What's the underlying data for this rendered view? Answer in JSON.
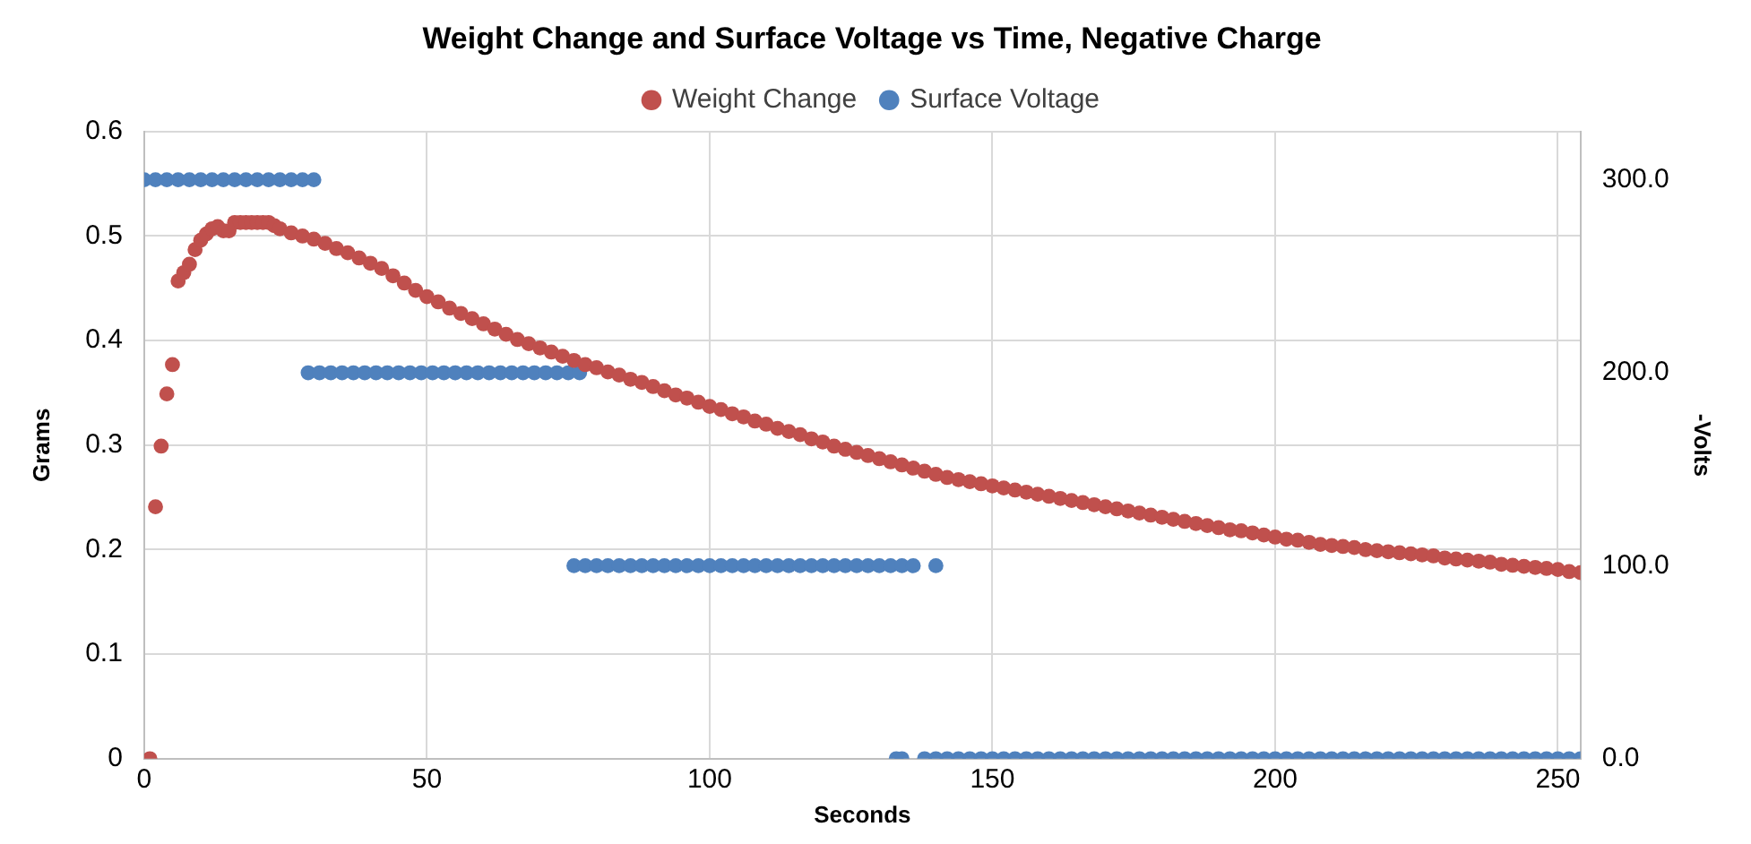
{
  "chart_data": {
    "type": "scatter",
    "title": "Weight Change and Surface Voltage vs Time, Negative Charge",
    "xlabel": "Seconds",
    "ylabel": "Grams",
    "y2label": "-Volts",
    "xlim": [
      0,
      254
    ],
    "xticks": [
      0,
      50,
      100,
      150,
      200,
      250
    ],
    "ylim": [
      0,
      0.6
    ],
    "yticks": [
      0,
      0.1,
      0.2,
      0.3,
      0.4,
      0.5,
      0.6
    ],
    "y2lim": [
      0,
      325
    ],
    "y2ticks": [
      {
        "value": 0,
        "label": "0.0"
      },
      {
        "value": 100,
        "label": "100.0"
      },
      {
        "value": 200,
        "label": "200.0"
      },
      {
        "value": 300,
        "label": "300.0"
      }
    ],
    "grid": true,
    "legend": "top",
    "marker": "circle",
    "series": [
      {
        "name": "Weight Change",
        "color": "#c0504d",
        "x": [
          1,
          2,
          3,
          4,
          5,
          6,
          7,
          8,
          9,
          10,
          11,
          12,
          13,
          14,
          15,
          16,
          17,
          18,
          19,
          20,
          21,
          22,
          23,
          24,
          26,
          28,
          30,
          32,
          34,
          36,
          38,
          40,
          42,
          44,
          46,
          48,
          50,
          52,
          54,
          56,
          58,
          60,
          62,
          64,
          66,
          68,
          70,
          72,
          74,
          76,
          78,
          80,
          82,
          84,
          86,
          88,
          90,
          92,
          94,
          96,
          98,
          100,
          102,
          104,
          106,
          108,
          110,
          112,
          114,
          116,
          118,
          120,
          122,
          124,
          126,
          128,
          130,
          132,
          134,
          136,
          138,
          140,
          142,
          144,
          146,
          148,
          150,
          152,
          154,
          156,
          158,
          160,
          162,
          164,
          166,
          168,
          170,
          172,
          174,
          176,
          178,
          180,
          182,
          184,
          186,
          188,
          190,
          192,
          194,
          196,
          198,
          200,
          202,
          204,
          206,
          208,
          210,
          212,
          214,
          216,
          218,
          220,
          222,
          224,
          226,
          228,
          230,
          232,
          234,
          236,
          238,
          240,
          242,
          244,
          246,
          248,
          250,
          252,
          254
        ],
        "values": [
          0,
          0.241,
          0.299,
          0.349,
          0.377,
          0.457,
          0.465,
          0.473,
          0.487,
          0.496,
          0.502,
          0.507,
          0.509,
          0.505,
          0.505,
          0.513,
          0.513,
          0.513,
          0.513,
          0.513,
          0.513,
          0.513,
          0.51,
          0.507,
          0.503,
          0.5,
          0.497,
          0.493,
          0.488,
          0.484,
          0.479,
          0.474,
          0.469,
          0.462,
          0.455,
          0.448,
          0.442,
          0.437,
          0.431,
          0.426,
          0.421,
          0.416,
          0.411,
          0.406,
          0.401,
          0.397,
          0.393,
          0.389,
          0.385,
          0.381,
          0.377,
          0.374,
          0.37,
          0.367,
          0.363,
          0.36,
          0.356,
          0.352,
          0.348,
          0.345,
          0.341,
          0.337,
          0.334,
          0.33,
          0.327,
          0.323,
          0.32,
          0.316,
          0.313,
          0.31,
          0.306,
          0.303,
          0.299,
          0.296,
          0.293,
          0.29,
          0.287,
          0.284,
          0.281,
          0.278,
          0.275,
          0.272,
          0.269,
          0.267,
          0.265,
          0.263,
          0.261,
          0.259,
          0.257,
          0.255,
          0.253,
          0.251,
          0.249,
          0.247,
          0.245,
          0.243,
          0.241,
          0.239,
          0.237,
          0.235,
          0.233,
          0.231,
          0.229,
          0.227,
          0.225,
          0.223,
          0.221,
          0.219,
          0.218,
          0.216,
          0.214,
          0.212,
          0.21,
          0.209,
          0.207,
          0.205,
          0.204,
          0.203,
          0.202,
          0.2,
          0.199,
          0.198,
          0.197,
          0.196,
          0.195,
          0.194,
          0.192,
          0.191,
          0.19,
          0.189,
          0.188,
          0.186,
          0.185,
          0.184,
          0.183,
          0.182,
          0.181,
          0.179,
          0.178
        ]
      },
      {
        "name": "Surface Voltage",
        "color": "#4f81bd",
        "axis": "y2",
        "x": [
          0,
          2,
          4,
          6,
          8,
          10,
          12,
          14,
          16,
          18,
          20,
          22,
          24,
          26,
          28,
          30,
          29,
          31,
          33,
          35,
          37,
          39,
          41,
          43,
          45,
          47,
          49,
          51,
          53,
          55,
          57,
          59,
          61,
          63,
          65,
          67,
          69,
          71,
          73,
          75,
          77,
          76,
          78,
          80,
          82,
          84,
          86,
          88,
          90,
          92,
          94,
          96,
          98,
          100,
          102,
          104,
          106,
          108,
          110,
          112,
          114,
          116,
          118,
          120,
          122,
          124,
          126,
          128,
          130,
          132,
          134,
          136,
          140,
          133,
          134,
          138,
          140,
          142,
          144,
          146,
          148,
          150,
          152,
          154,
          156,
          158,
          160,
          162,
          164,
          166,
          168,
          170,
          172,
          174,
          176,
          178,
          180,
          182,
          184,
          186,
          188,
          190,
          192,
          194,
          196,
          198,
          200,
          202,
          204,
          206,
          208,
          210,
          212,
          214,
          216,
          218,
          220,
          222,
          224,
          226,
          228,
          230,
          232,
          234,
          236,
          238,
          240,
          242,
          244,
          246,
          248,
          250,
          252,
          254
        ],
        "values": [
          300,
          300,
          300,
          300,
          300,
          300,
          300,
          300,
          300,
          300,
          300,
          300,
          300,
          300,
          300,
          300,
          200,
          200,
          200,
          200,
          200,
          200,
          200,
          200,
          200,
          200,
          200,
          200,
          200,
          200,
          200,
          200,
          200,
          200,
          200,
          200,
          200,
          200,
          200,
          200,
          200,
          100,
          100,
          100,
          100,
          100,
          100,
          100,
          100,
          100,
          100,
          100,
          100,
          100,
          100,
          100,
          100,
          100,
          100,
          100,
          100,
          100,
          100,
          100,
          100,
          100,
          100,
          100,
          100,
          100,
          100,
          100,
          100,
          0,
          0,
          0,
          0,
          0,
          0,
          0,
          0,
          0,
          0,
          0,
          0,
          0,
          0,
          0,
          0,
          0,
          0,
          0,
          0,
          0,
          0,
          0,
          0,
          0,
          0,
          0,
          0,
          0,
          0,
          0,
          0,
          0,
          0,
          0,
          0,
          0,
          0,
          0,
          0,
          0,
          0,
          0,
          0,
          0,
          0,
          0,
          0,
          0,
          0,
          0,
          0,
          0,
          0,
          0,
          0,
          0,
          0,
          0,
          0,
          0
        ]
      }
    ]
  }
}
